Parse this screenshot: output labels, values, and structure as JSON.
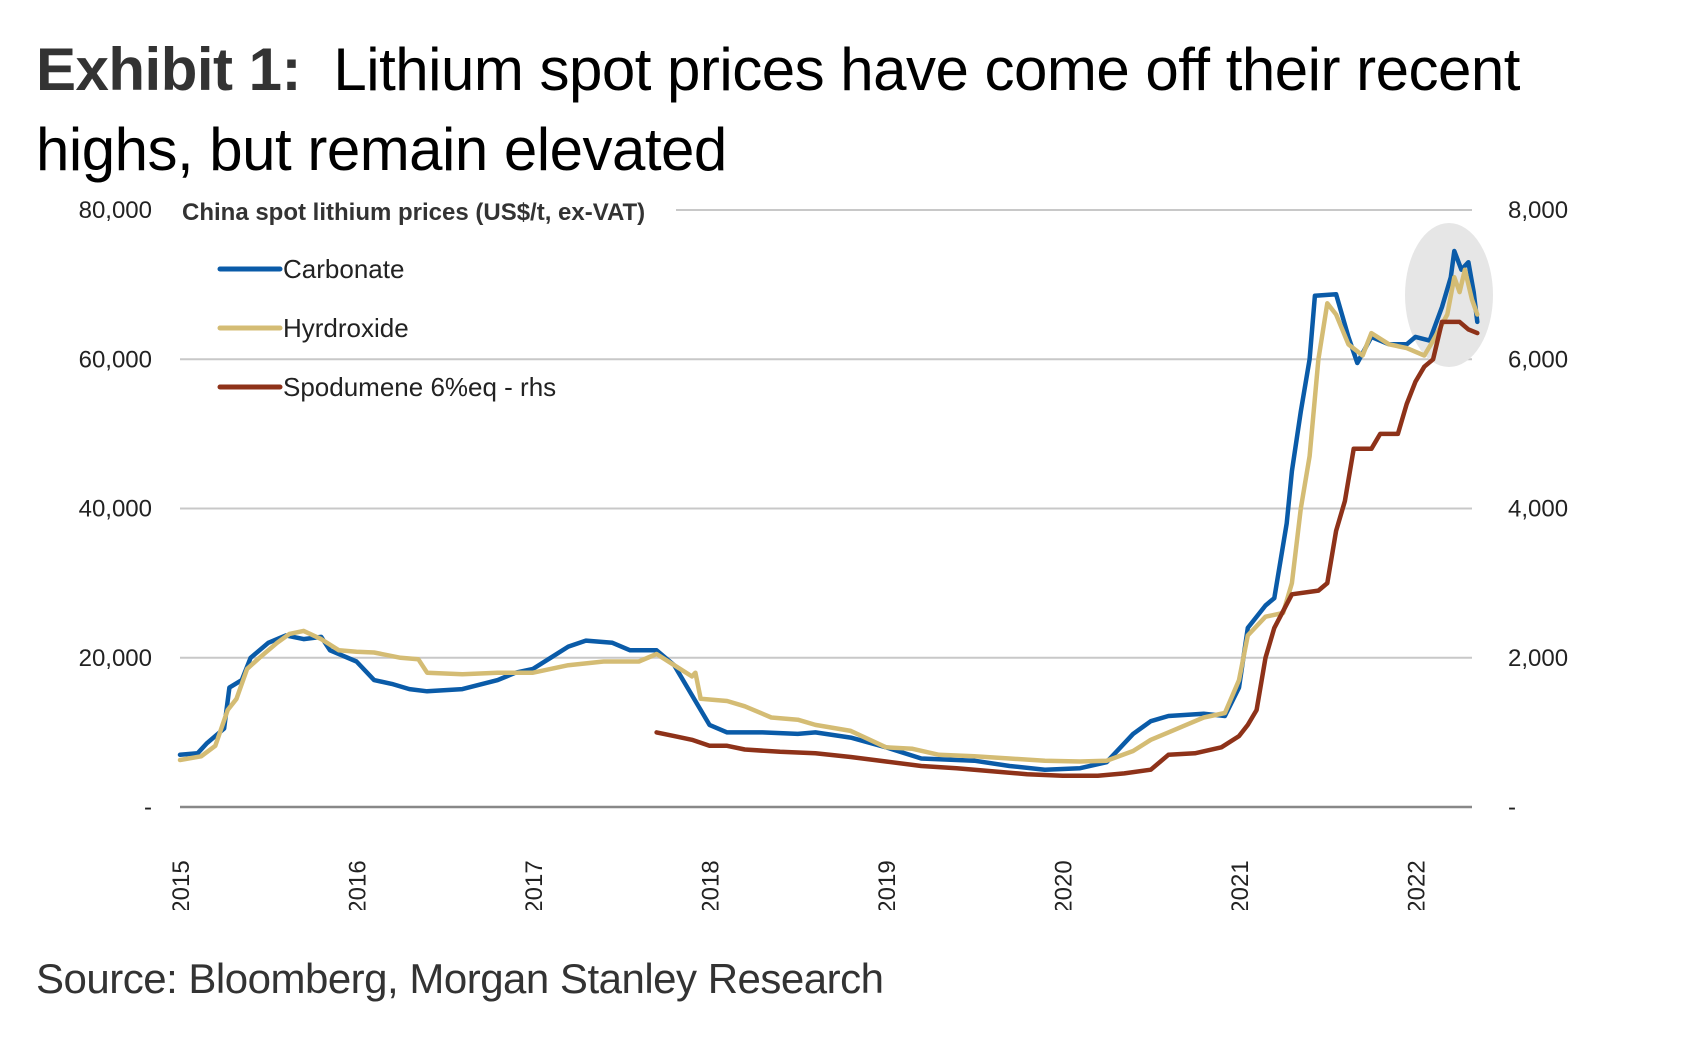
{
  "title": {
    "exhibit": "Exhibit 1:",
    "text": "Lithium spot prices have come off their recent highs, but remain elevated"
  },
  "source": "Source: Bloomberg, Morgan Stanley Research",
  "chart_data": {
    "type": "line",
    "title": "China spot lithium prices (US$/t, ex-VAT)",
    "xlabel": "",
    "ylabel": "",
    "x_range": [
      2015.0,
      2022.35
    ],
    "x_ticks": [
      "2015",
      "2016",
      "2017",
      "2018",
      "2019",
      "2020",
      "2021",
      "2022"
    ],
    "y_left": {
      "range": [
        0,
        80000
      ],
      "ticks": [
        "-",
        "20,000",
        "40,000",
        "60,000",
        "80,000"
      ],
      "tick_values": [
        0,
        20000,
        40000,
        60000,
        80000
      ]
    },
    "y_right": {
      "range": [
        0,
        8000
      ],
      "ticks": [
        "-",
        "2,000",
        "4,000",
        "6,000",
        "8,000"
      ],
      "tick_values": [
        0,
        2000,
        4000,
        6000,
        8000
      ]
    },
    "grid": true,
    "legend_position": "top-left",
    "highlight": "Recent peak region circled (early 2022)",
    "series": [
      {
        "name": "Carbonate",
        "axis": "left",
        "color": "#0a5ba8",
        "points": [
          [
            2015.0,
            7000
          ],
          [
            2015.1,
            7200
          ],
          [
            2015.15,
            8500
          ],
          [
            2015.25,
            10500
          ],
          [
            2015.28,
            16000
          ],
          [
            2015.35,
            17000
          ],
          [
            2015.4,
            20000
          ],
          [
            2015.5,
            22000
          ],
          [
            2015.6,
            23000
          ],
          [
            2015.7,
            22500
          ],
          [
            2015.8,
            22800
          ],
          [
            2015.85,
            21000
          ],
          [
            2016.0,
            19500
          ],
          [
            2016.1,
            17000
          ],
          [
            2016.2,
            16500
          ],
          [
            2016.3,
            15800
          ],
          [
            2016.4,
            15500
          ],
          [
            2016.6,
            15800
          ],
          [
            2016.8,
            17000
          ],
          [
            2016.9,
            18000
          ],
          [
            2017.0,
            18500
          ],
          [
            2017.1,
            20000
          ],
          [
            2017.2,
            21500
          ],
          [
            2017.3,
            22300
          ],
          [
            2017.45,
            22000
          ],
          [
            2017.55,
            21000
          ],
          [
            2017.7,
            21000
          ],
          [
            2017.8,
            19000
          ],
          [
            2017.9,
            15000
          ],
          [
            2018.0,
            11000
          ],
          [
            2018.1,
            10000
          ],
          [
            2018.3,
            10000
          ],
          [
            2018.5,
            9800
          ],
          [
            2018.6,
            10000
          ],
          [
            2018.8,
            9300
          ],
          [
            2019.0,
            8000
          ],
          [
            2019.2,
            6500
          ],
          [
            2019.5,
            6200
          ],
          [
            2019.7,
            5500
          ],
          [
            2019.9,
            5000
          ],
          [
            2020.1,
            5200
          ],
          [
            2020.25,
            6000
          ],
          [
            2020.4,
            9800
          ],
          [
            2020.5,
            11500
          ],
          [
            2020.6,
            12200
          ],
          [
            2020.8,
            12500
          ],
          [
            2020.92,
            12200
          ],
          [
            2021.0,
            16000
          ],
          [
            2021.05,
            24000
          ],
          [
            2021.15,
            27000
          ],
          [
            2021.2,
            28000
          ],
          [
            2021.27,
            38000
          ],
          [
            2021.3,
            45000
          ],
          [
            2021.35,
            53000
          ],
          [
            2021.4,
            60000
          ],
          [
            2021.43,
            68500
          ],
          [
            2021.55,
            68700
          ],
          [
            2021.62,
            63000
          ],
          [
            2021.67,
            59500
          ],
          [
            2021.75,
            63000
          ],
          [
            2021.85,
            62000
          ],
          [
            2021.95,
            62000
          ],
          [
            2022.0,
            63000
          ],
          [
            2022.08,
            62500
          ],
          [
            2022.15,
            67000
          ],
          [
            2022.2,
            71000
          ],
          [
            2022.22,
            74500
          ],
          [
            2022.26,
            72000
          ],
          [
            2022.3,
            73000
          ],
          [
            2022.33,
            69000
          ],
          [
            2022.35,
            65000
          ]
        ]
      },
      {
        "name": "Hyrdroxide",
        "axis": "left",
        "color": "#d4bc74",
        "points": [
          [
            2015.0,
            6300
          ],
          [
            2015.12,
            6800
          ],
          [
            2015.2,
            8200
          ],
          [
            2015.27,
            13000
          ],
          [
            2015.32,
            14500
          ],
          [
            2015.38,
            18500
          ],
          [
            2015.45,
            20000
          ],
          [
            2015.55,
            22000
          ],
          [
            2015.62,
            23200
          ],
          [
            2015.7,
            23600
          ],
          [
            2015.8,
            22500
          ],
          [
            2015.9,
            21000
          ],
          [
            2016.0,
            20800
          ],
          [
            2016.1,
            20700
          ],
          [
            2016.25,
            20000
          ],
          [
            2016.35,
            19800
          ],
          [
            2016.4,
            18000
          ],
          [
            2016.6,
            17800
          ],
          [
            2016.8,
            18000
          ],
          [
            2017.0,
            18000
          ],
          [
            2017.2,
            19000
          ],
          [
            2017.4,
            19500
          ],
          [
            2017.6,
            19500
          ],
          [
            2017.7,
            20500
          ],
          [
            2017.8,
            19000
          ],
          [
            2017.9,
            17500
          ],
          [
            2017.92,
            18000
          ],
          [
            2017.95,
            14500
          ],
          [
            2018.1,
            14200
          ],
          [
            2018.2,
            13500
          ],
          [
            2018.35,
            12000
          ],
          [
            2018.5,
            11700
          ],
          [
            2018.6,
            11000
          ],
          [
            2018.8,
            10200
          ],
          [
            2019.0,
            8000
          ],
          [
            2019.15,
            7800
          ],
          [
            2019.3,
            7000
          ],
          [
            2019.5,
            6800
          ],
          [
            2019.7,
            6500
          ],
          [
            2019.9,
            6200
          ],
          [
            2020.1,
            6100
          ],
          [
            2020.25,
            6200
          ],
          [
            2020.4,
            7500
          ],
          [
            2020.5,
            9000
          ],
          [
            2020.6,
            10000
          ],
          [
            2020.7,
            11000
          ],
          [
            2020.8,
            12000
          ],
          [
            2020.92,
            12600
          ],
          [
            2021.0,
            17000
          ],
          [
            2021.05,
            23000
          ],
          [
            2021.15,
            25500
          ],
          [
            2021.25,
            26000
          ],
          [
            2021.3,
            30000
          ],
          [
            2021.35,
            40000
          ],
          [
            2021.4,
            47000
          ],
          [
            2021.45,
            60000
          ],
          [
            2021.5,
            67500
          ],
          [
            2021.55,
            66000
          ],
          [
            2021.62,
            62000
          ],
          [
            2021.7,
            60500
          ],
          [
            2021.75,
            63500
          ],
          [
            2021.85,
            62000
          ],
          [
            2021.95,
            61500
          ],
          [
            2022.0,
            61000
          ],
          [
            2022.05,
            60500
          ],
          [
            2022.1,
            62500
          ],
          [
            2022.18,
            66000
          ],
          [
            2022.22,
            71000
          ],
          [
            2022.25,
            69000
          ],
          [
            2022.28,
            72000
          ],
          [
            2022.32,
            68000
          ],
          [
            2022.35,
            66000
          ]
        ]
      },
      {
        "name": "Spodumene 6%eq - rhs",
        "axis": "right",
        "color": "#8e3219",
        "points": [
          [
            2017.7,
            1000
          ],
          [
            2017.8,
            950
          ],
          [
            2017.9,
            900
          ],
          [
            2018.0,
            820
          ],
          [
            2018.1,
            820
          ],
          [
            2018.2,
            770
          ],
          [
            2018.4,
            740
          ],
          [
            2018.6,
            720
          ],
          [
            2018.8,
            670
          ],
          [
            2019.0,
            610
          ],
          [
            2019.2,
            550
          ],
          [
            2019.4,
            520
          ],
          [
            2019.6,
            480
          ],
          [
            2019.8,
            440
          ],
          [
            2020.0,
            420
          ],
          [
            2020.2,
            420
          ],
          [
            2020.35,
            450
          ],
          [
            2020.5,
            500
          ],
          [
            2020.6,
            700
          ],
          [
            2020.75,
            720
          ],
          [
            2020.9,
            800
          ],
          [
            2021.0,
            950
          ],
          [
            2021.05,
            1100
          ],
          [
            2021.1,
            1300
          ],
          [
            2021.15,
            2000
          ],
          [
            2021.2,
            2400
          ],
          [
            2021.3,
            2850
          ],
          [
            2021.45,
            2900
          ],
          [
            2021.5,
            3000
          ],
          [
            2021.55,
            3700
          ],
          [
            2021.6,
            4100
          ],
          [
            2021.65,
            4800
          ],
          [
            2021.75,
            4800
          ],
          [
            2021.8,
            5000
          ],
          [
            2021.9,
            5000
          ],
          [
            2021.95,
            5400
          ],
          [
            2022.0,
            5700
          ],
          [
            2022.05,
            5900
          ],
          [
            2022.1,
            6000
          ],
          [
            2022.15,
            6500
          ],
          [
            2022.25,
            6500
          ],
          [
            2022.3,
            6400
          ],
          [
            2022.35,
            6350
          ]
        ]
      }
    ]
  }
}
